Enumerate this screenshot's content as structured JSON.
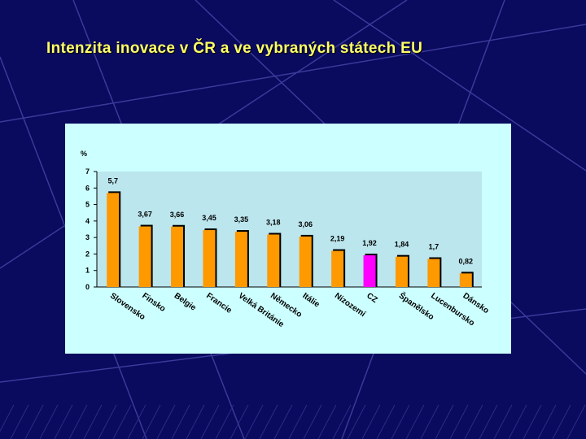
{
  "slide": {
    "title": "Intenzita inovace v ČR a ve vybraných státech EU"
  },
  "colors": {
    "background": "#0a0a5e",
    "title": "#ffff66",
    "panel": "#ccffff",
    "plot_area": "#bbe6ee",
    "bar": "#ff9900",
    "bar_highlight": "#ff00ff"
  },
  "chart_data": {
    "type": "bar",
    "title": "",
    "xlabel": "",
    "ylabel": "%",
    "ylim": [
      0,
      7
    ],
    "yticks": [
      "0",
      "1",
      "2",
      "3",
      "4",
      "5",
      "6",
      "7"
    ],
    "grid": false,
    "legend": "none",
    "categories": [
      "Slovensko",
      "Finsko",
      "Belgie",
      "Francie",
      "Velká Británie",
      "Německo",
      "Itálie",
      "Nizozemí",
      "CZ",
      "Španělsko",
      "Lucenbursko",
      "Dánsko"
    ],
    "values": [
      5.7,
      3.67,
      3.66,
      3.45,
      3.35,
      3.18,
      3.06,
      2.19,
      1.92,
      1.84,
      1.7,
      0.82
    ],
    "value_labels": [
      "5,7",
      "3,67",
      "3,66",
      "3,45",
      "3,35",
      "3,18",
      "3,06",
      "2,19",
      "1,92",
      "1,84",
      "1,7",
      "0,82"
    ],
    "highlight_category": "CZ"
  }
}
